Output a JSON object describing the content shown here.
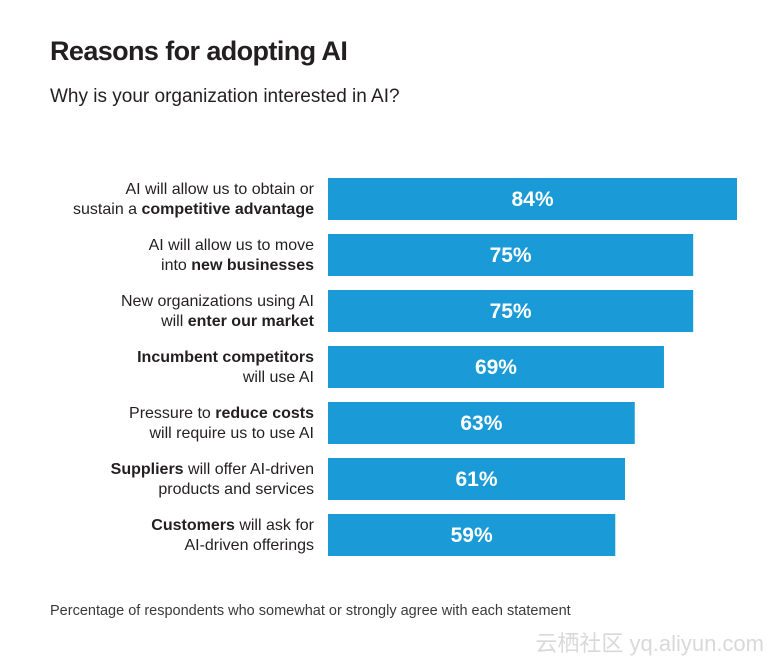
{
  "chart_data": {
    "type": "bar",
    "orientation": "horizontal",
    "title": "Reasons for adopting AI",
    "subtitle": "Why is your organization interested in AI?",
    "footnote": "Percentage of respondents who somewhat or strongly agree with each statement",
    "xlim": [
      0,
      100
    ],
    "categories": [
      [
        [
          {
            "t": "AI will allow us to obtain or",
            "b": false
          }
        ],
        [
          {
            "t": "sustain a ",
            "b": false
          },
          {
            "t": "competitive advantage",
            "b": true
          }
        ]
      ],
      [
        [
          {
            "t": "AI will allow us to move",
            "b": false
          }
        ],
        [
          {
            "t": "into ",
            "b": false
          },
          {
            "t": "new businesses",
            "b": true
          }
        ]
      ],
      [
        [
          {
            "t": "New organizations using AI",
            "b": false
          }
        ],
        [
          {
            "t": "will ",
            "b": false
          },
          {
            "t": "enter our market",
            "b": true
          }
        ]
      ],
      [
        [
          {
            "t": "Incumbent competitors",
            "b": true
          }
        ],
        [
          {
            "t": "will use AI",
            "b": false
          }
        ]
      ],
      [
        [
          {
            "t": "Pressure to ",
            "b": false
          },
          {
            "t": "reduce costs",
            "b": true
          }
        ],
        [
          {
            "t": "will require us to use AI",
            "b": false
          }
        ]
      ],
      [
        [
          {
            "t": "Suppliers",
            "b": true
          },
          {
            "t": " will offer AI-driven",
            "b": false
          }
        ],
        [
          {
            "t": "products and services",
            "b": false
          }
        ]
      ],
      [
        [
          {
            "t": "Customers",
            "b": true
          },
          {
            "t": " will ask for",
            "b": false
          }
        ],
        [
          {
            "t": "AI-driven offerings",
            "b": false
          }
        ]
      ]
    ],
    "values": [
      84,
      75,
      75,
      69,
      63,
      61,
      59
    ],
    "value_labels": [
      "84%",
      "75%",
      "75%",
      "69%",
      "63%",
      "61%",
      "59%"
    ],
    "bar_color": "#1a9ad6"
  },
  "watermark": "云栖社区 yq.aliyun.com"
}
